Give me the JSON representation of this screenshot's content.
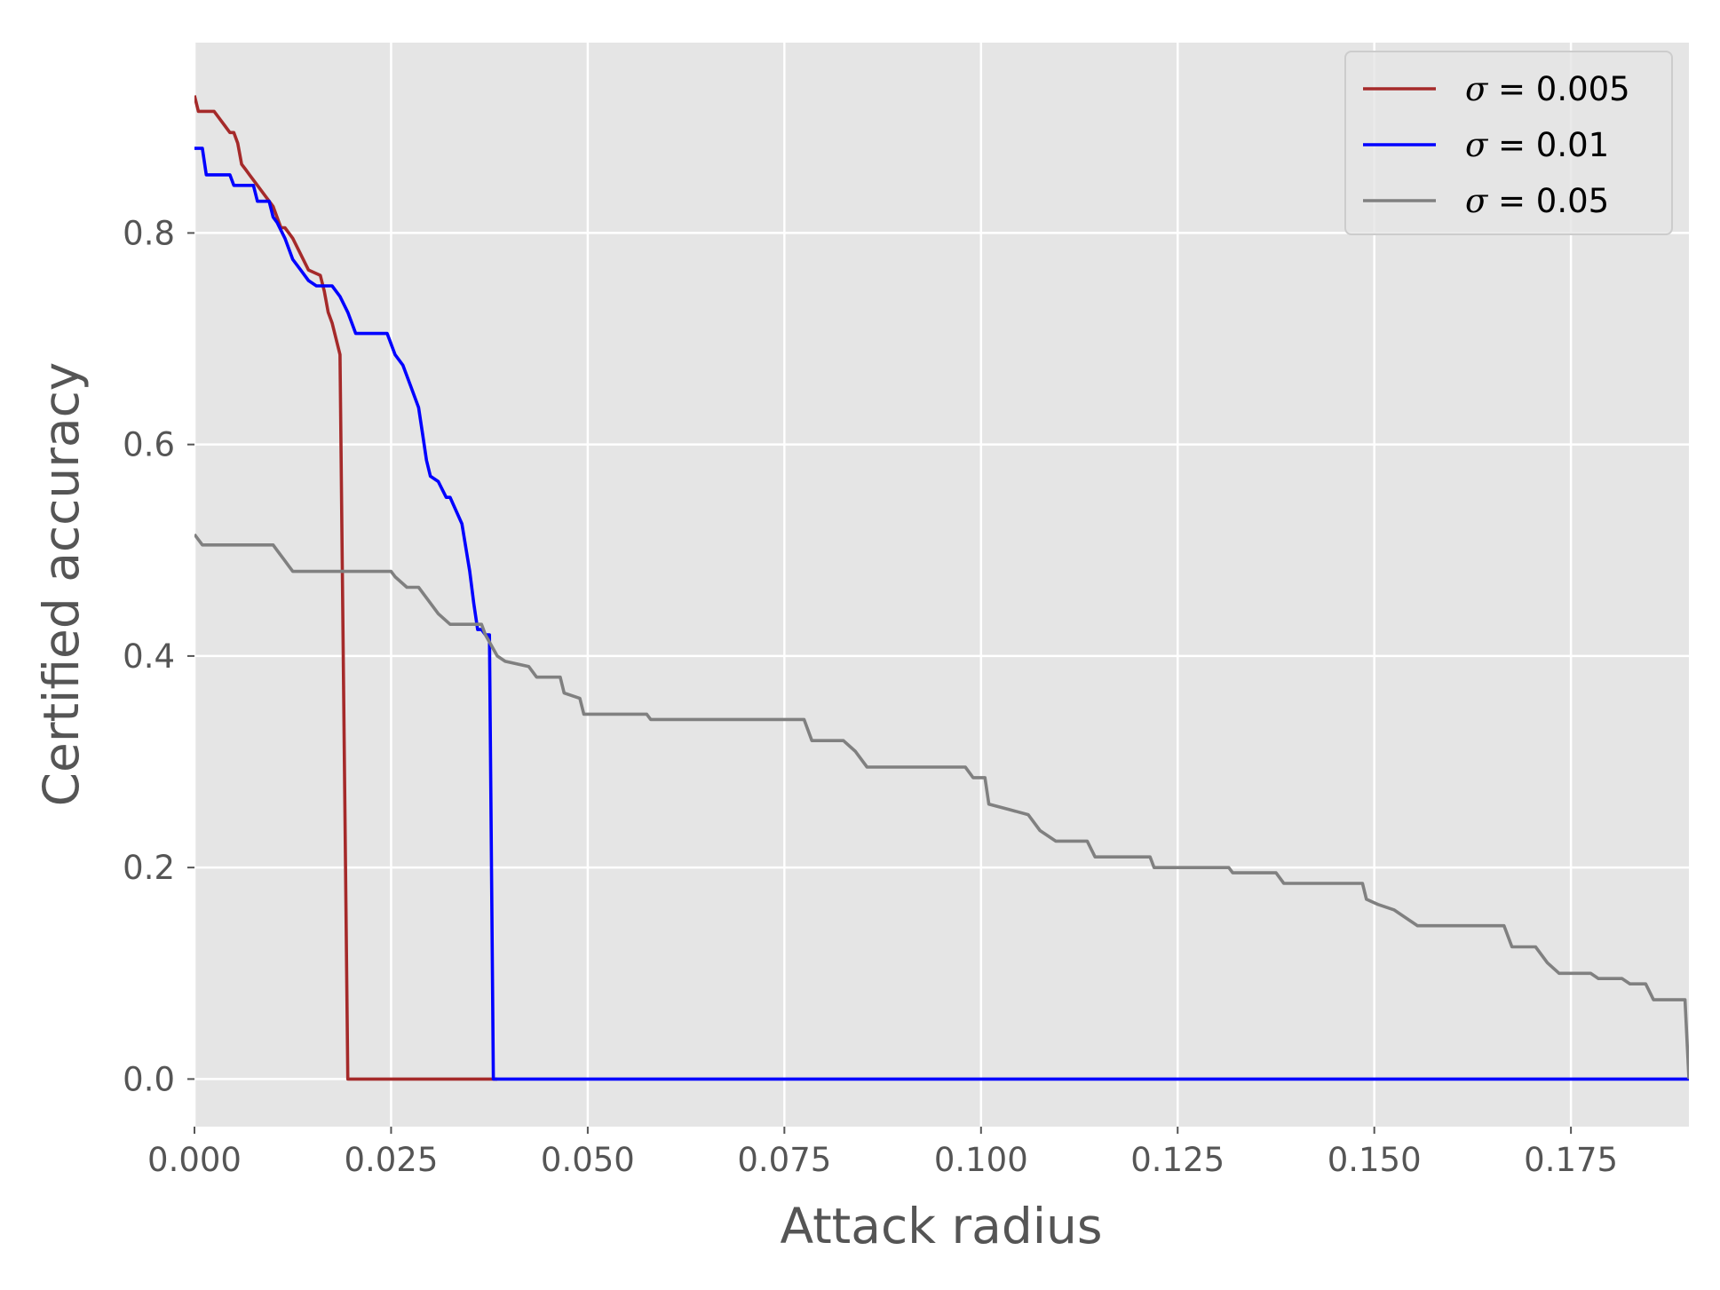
{
  "chart_data": {
    "type": "line",
    "title": "",
    "xlabel": "Attack radius",
    "ylabel": "Certified accuracy",
    "xlim": [
      0.0,
      0.19
    ],
    "ylim": [
      -0.045,
      0.98
    ],
    "xticks": [
      0.0,
      0.025,
      0.05,
      0.075,
      0.1,
      0.125,
      0.15,
      0.175
    ],
    "xtick_labels": [
      "0.000",
      "0.025",
      "0.050",
      "0.075",
      "0.100",
      "0.125",
      "0.150",
      "0.175"
    ],
    "yticks": [
      0.0,
      0.2,
      0.4,
      0.6,
      0.8
    ],
    "ytick_labels": [
      "0.0",
      "0.2",
      "0.4",
      "0.6",
      "0.8"
    ],
    "grid": true,
    "legend_position": "top-right",
    "series": [
      {
        "name": "σ = 0.005",
        "sigma": "σ",
        "rest": " = 0.005",
        "color": "#a52a2a",
        "x": [
          0,
          0.0005,
          0.0025,
          0.003,
          0.0045,
          0.005,
          0.0055,
          0.006,
          0.0065,
          0.007,
          0.008,
          0.009,
          0.01,
          0.0105,
          0.011,
          0.0115,
          0.0125,
          0.0145,
          0.016,
          0.0165,
          0.017,
          0.0175,
          0.0185,
          0.0195,
          0.0255,
          0.0385
        ],
        "y": [
          0.93,
          0.915,
          0.915,
          0.91,
          0.895,
          0.895,
          0.885,
          0.865,
          0.86,
          0.855,
          0.845,
          0.835,
          0.825,
          0.815,
          0.805,
          0.805,
          0.795,
          0.765,
          0.76,
          0.745,
          0.725,
          0.715,
          0.685,
          0.0,
          0.0,
          0.0
        ]
      },
      {
        "name": "σ = 0.01",
        "sigma": "σ",
        "rest": " = 0.01",
        "color": "#0000ff",
        "x": [
          0,
          0.001,
          0.0015,
          0.0045,
          0.005,
          0.0075,
          0.008,
          0.0095,
          0.01,
          0.0105,
          0.0115,
          0.0125,
          0.0135,
          0.0145,
          0.0155,
          0.0175,
          0.0185,
          0.0195,
          0.02,
          0.0205,
          0.021,
          0.0245,
          0.0255,
          0.0265,
          0.0275,
          0.0285,
          0.029,
          0.0295,
          0.03,
          0.031,
          0.032,
          0.0325,
          0.034,
          0.035,
          0.0355,
          0.036,
          0.0365,
          0.037,
          0.0375,
          0.038,
          0.0385,
          0.0455,
          0.19
        ],
        "y": [
          0.88,
          0.88,
          0.855,
          0.855,
          0.845,
          0.845,
          0.83,
          0.83,
          0.815,
          0.81,
          0.795,
          0.775,
          0.765,
          0.755,
          0.75,
          0.75,
          0.74,
          0.725,
          0.715,
          0.705,
          0.705,
          0.705,
          0.685,
          0.675,
          0.655,
          0.635,
          0.61,
          0.585,
          0.57,
          0.565,
          0.55,
          0.55,
          0.525,
          0.48,
          0.45,
          0.425,
          0.425,
          0.42,
          0.42,
          0.0,
          0.0,
          0.0,
          0.0
        ]
      },
      {
        "name": "σ = 0.05",
        "sigma": "σ",
        "rest": " = 0.05",
        "color": "#808080",
        "x": [
          0,
          0.001,
          0.005,
          0.01,
          0.0105,
          0.0115,
          0.012,
          0.0125,
          0.025,
          0.0255,
          0.027,
          0.0285,
          0.0295,
          0.031,
          0.0325,
          0.0365,
          0.037,
          0.0385,
          0.0395,
          0.0425,
          0.0435,
          0.0465,
          0.047,
          0.049,
          0.0495,
          0.0575,
          0.058,
          0.0775,
          0.0785,
          0.0825,
          0.084,
          0.0855,
          0.098,
          0.099,
          0.1005,
          0.101,
          0.1035,
          0.106,
          0.1075,
          0.1095,
          0.1135,
          0.1145,
          0.1215,
          0.122,
          0.1315,
          0.132,
          0.1375,
          0.1385,
          0.1485,
          0.149,
          0.1505,
          0.1525,
          0.1545,
          0.1555,
          0.1665,
          0.1675,
          0.1705,
          0.172,
          0.1735,
          0.1775,
          0.1785,
          0.1815,
          0.1825,
          0.1845,
          0.1855,
          0.1895,
          0.19
        ],
        "y": [
          0.515,
          0.505,
          0.505,
          0.505,
          0.5,
          0.49,
          0.485,
          0.48,
          0.48,
          0.475,
          0.465,
          0.465,
          0.455,
          0.44,
          0.43,
          0.43,
          0.42,
          0.4,
          0.395,
          0.39,
          0.38,
          0.38,
          0.365,
          0.36,
          0.345,
          0.345,
          0.34,
          0.34,
          0.32,
          0.32,
          0.31,
          0.295,
          0.295,
          0.285,
          0.285,
          0.26,
          0.255,
          0.25,
          0.235,
          0.225,
          0.225,
          0.21,
          0.21,
          0.2,
          0.2,
          0.195,
          0.195,
          0.185,
          0.185,
          0.17,
          0.165,
          0.16,
          0.15,
          0.145,
          0.145,
          0.125,
          0.125,
          0.11,
          0.1,
          0.1,
          0.095,
          0.095,
          0.09,
          0.09,
          0.075,
          0.075,
          0.0
        ]
      }
    ]
  }
}
